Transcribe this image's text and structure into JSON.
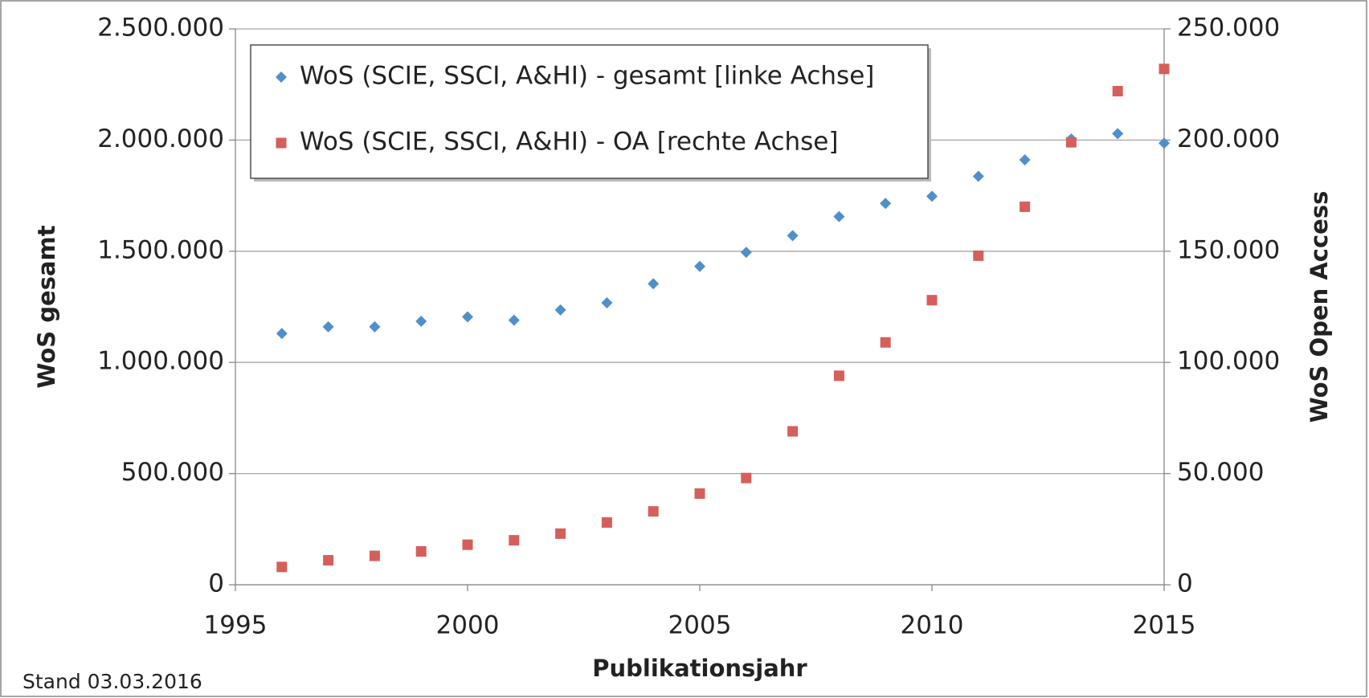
{
  "chart_data": {
    "type": "scatter",
    "x_label": "Publikationsjahr",
    "y_label": "WoS gesamt",
    "y2_label": "WoS Open Access",
    "annotation": "Stand 03.03.2016",
    "xlim": [
      1995,
      2015
    ],
    "xticks": [
      1995,
      2000,
      2005,
      2010,
      2015
    ],
    "ylim": [
      0,
      2500000
    ],
    "yticks": [
      0,
      {
        "value": 500000,
        "label": "500.000"
      },
      {
        "value": 1000000,
        "label": "1.000.000"
      },
      {
        "value": 1500000,
        "label": "1.500.000"
      },
      {
        "value": 2000000,
        "label": "2.000.000"
      },
      {
        "value": 2500000,
        "label": "2.500.000"
      }
    ],
    "y2lim": [
      0,
      250000
    ],
    "y2ticks": [
      0,
      {
        "value": 50000,
        "label": "50.000"
      },
      {
        "value": 100000,
        "label": "100.000"
      },
      {
        "value": 150000,
        "label": "150.000"
      },
      {
        "value": 200000,
        "label": "200.000"
      },
      {
        "value": 250000,
        "label": "250.000"
      }
    ],
    "grid": true,
    "legend": "upper left",
    "x": [
      1996,
      1997,
      1998,
      1999,
      2000,
      2001,
      2002,
      2003,
      2004,
      2005,
      2006,
      2007,
      2008,
      2009,
      2010,
      2011,
      2012,
      2013,
      2014,
      2015
    ],
    "series": [
      {
        "name": "WoS (SCIE, SSCI, A&HI) - gesamt [linke Achse]",
        "color": "#4f8fca",
        "marker": "diamond",
        "values": [
          1130000,
          1160000,
          1160000,
          1185000,
          1205000,
          1190000,
          1236000,
          1268000,
          1354000,
          1432000,
          1495000,
          1570000,
          1656000,
          1715000,
          1747000,
          1837000,
          1911000,
          2005000,
          2029000,
          1986000
        ]
      },
      {
        "name": "WoS (SCIE, SSCI, A&HI) - OA [rechte Achse]",
        "color": "#d55f5a",
        "marker": "square",
        "axis": "y2",
        "values": [
          8000,
          11000,
          13000,
          15000,
          18000,
          20000,
          23000,
          28000,
          33000,
          41000,
          48000,
          69000,
          94000,
          109000,
          128000,
          148000,
          170000,
          199000,
          222000,
          232000
        ]
      }
    ]
  }
}
